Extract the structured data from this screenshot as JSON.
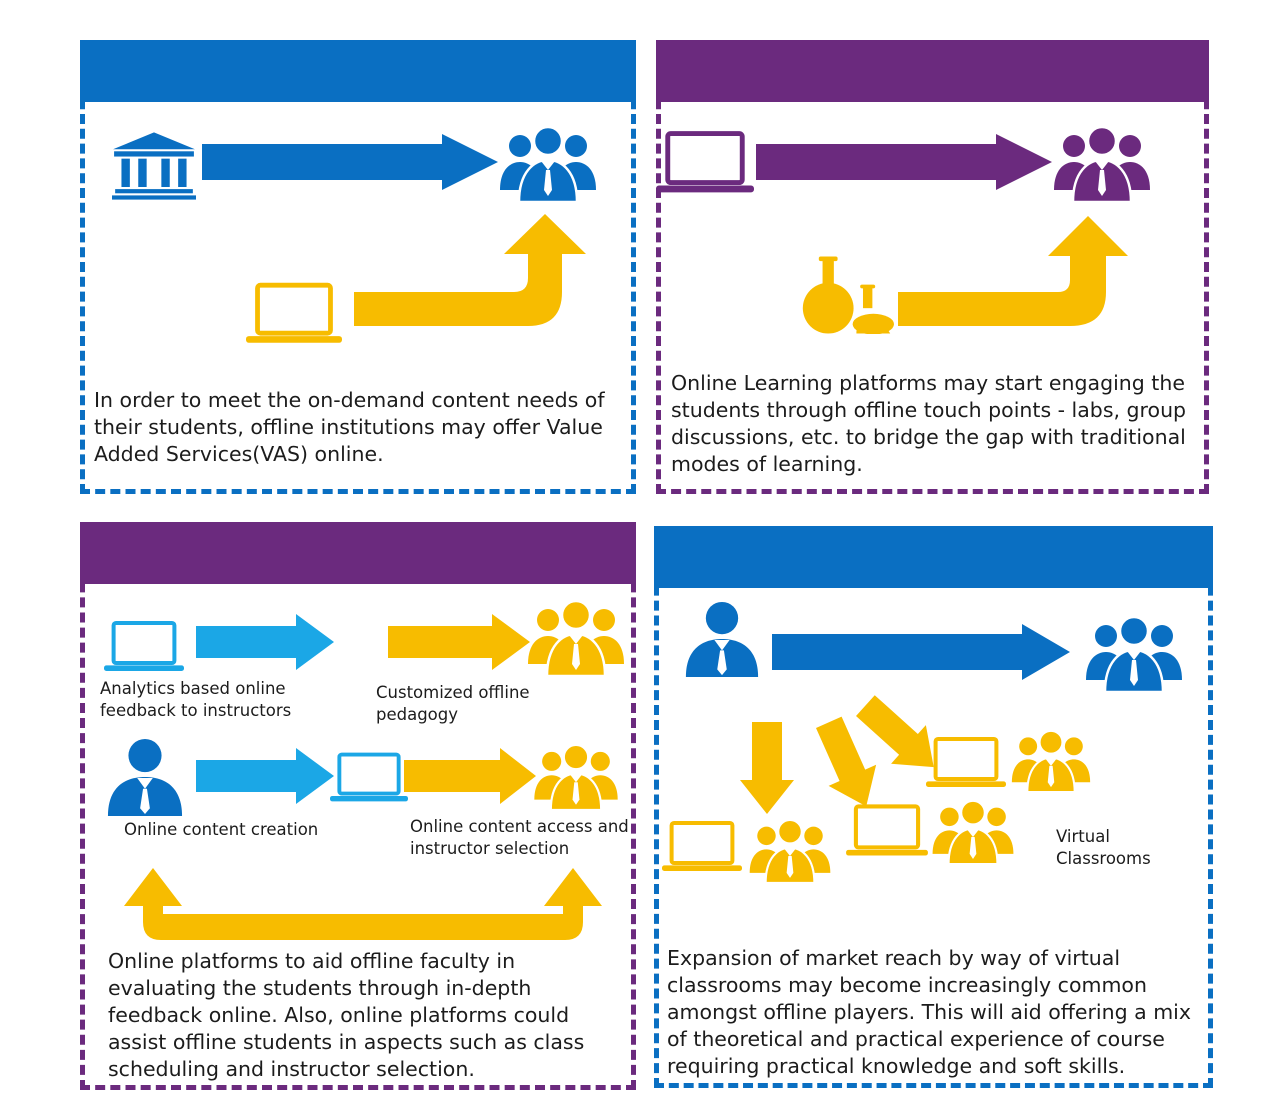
{
  "colors": {
    "blue": "#0a6fc2",
    "purple": "#6b2a7e",
    "yellow": "#f7bc00",
    "light_blue": "#1ba7e6"
  },
  "panel_top_left": {
    "description": "In order to meet the on-demand content needs of their students, offline institutions may offer Value Added Services(VAS) online.",
    "icons": [
      "institution-icon",
      "group-icon",
      "laptop-icon"
    ]
  },
  "panel_top_right": {
    "description": "Online Learning platforms may start engaging the students through offline touch points - labs, group discussions, etc. to bridge the gap with traditional modes of learning.",
    "icons": [
      "laptop-icon",
      "group-icon",
      "lab-flask-icon"
    ]
  },
  "panel_bottom_left": {
    "label_analytics": "Analytics based online feedback to instructors",
    "label_customized": "Customized offline pedagogy",
    "label_creation": "Online content creation",
    "label_access": "Online content access and instructor selection",
    "description": "Online platforms to aid offline faculty in evaluating the students through in-depth feedback online. Also, online platforms could assist offline students in aspects such as class scheduling and instructor selection.",
    "icons": [
      "laptop-icon",
      "group-icon",
      "person-icon"
    ]
  },
  "panel_bottom_right": {
    "label_virtual": "Virtual Classrooms",
    "description": "Expansion of market reach by way of virtual classrooms may become increasingly common amongst offline players. This will aid offering a mix of theoretical and practical experience of course requiring practical knowledge and soft skills.",
    "icons": [
      "person-icon",
      "group-icon",
      "laptop-icon"
    ]
  }
}
